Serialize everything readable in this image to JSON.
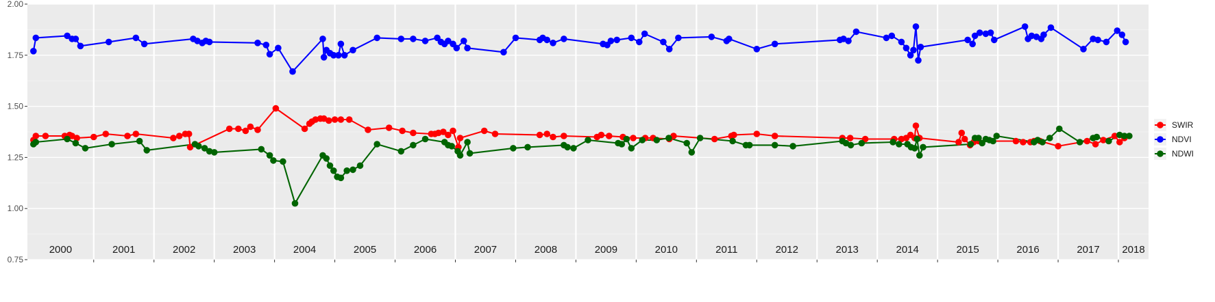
{
  "chart_data": {
    "type": "line",
    "title": "",
    "xlabel": "",
    "ylabel": "",
    "xlim": [
      1999.9,
      2018.5
    ],
    "ylim": [
      0.75,
      2.0
    ],
    "y_ticks": [
      "0.75",
      "1.00",
      "1.25",
      "1.50",
      "1.75",
      "2.00"
    ],
    "y_tick_values": [
      0.75,
      1.0,
      1.25,
      1.5,
      1.75,
      2.0
    ],
    "year_labels": [
      "2000",
      "2001",
      "2002",
      "2003",
      "2004",
      "2005",
      "2006",
      "2007",
      "2008",
      "2009",
      "2010",
      "2011",
      "2012",
      "2013",
      "2014",
      "2015",
      "2016",
      "2017",
      "2018"
    ],
    "year_boundaries": [
      2001,
      2002,
      2003,
      2004,
      2005,
      2006,
      2007,
      2008,
      2009,
      2010,
      2011,
      2012,
      2013,
      2014,
      2015,
      2016,
      2017,
      2018
    ],
    "background": "#ebebeb",
    "grid": true,
    "legend_position": "right",
    "series": [
      {
        "name": "SWIR",
        "color": "#ff0000",
        "points": [
          [
            2000.0,
            1.335
          ],
          [
            2000.04,
            1.355
          ],
          [
            2000.2,
            1.355
          ],
          [
            2000.52,
            1.355
          ],
          [
            2000.6,
            1.36
          ],
          [
            2000.64,
            1.355
          ],
          [
            2000.72,
            1.345
          ],
          [
            2001.0,
            1.35
          ],
          [
            2001.2,
            1.365
          ],
          [
            2001.56,
            1.355
          ],
          [
            2001.7,
            1.365
          ],
          [
            2002.32,
            1.345
          ],
          [
            2002.42,
            1.355
          ],
          [
            2002.52,
            1.365
          ],
          [
            2002.58,
            1.365
          ],
          [
            2002.6,
            1.3
          ],
          [
            2003.25,
            1.39
          ],
          [
            2003.4,
            1.39
          ],
          [
            2003.52,
            1.38
          ],
          [
            2003.6,
            1.4
          ],
          [
            2003.72,
            1.385
          ],
          [
            2004.02,
            1.49
          ],
          [
            2004.5,
            1.39
          ],
          [
            2004.58,
            1.415
          ],
          [
            2004.62,
            1.425
          ],
          [
            2004.68,
            1.435
          ],
          [
            2004.76,
            1.44
          ],
          [
            2004.82,
            1.44
          ],
          [
            2004.9,
            1.43
          ],
          [
            2005.0,
            1.435
          ],
          [
            2005.1,
            1.435
          ],
          [
            2005.24,
            1.435
          ],
          [
            2005.55,
            1.385
          ],
          [
            2005.9,
            1.395
          ],
          [
            2006.12,
            1.38
          ],
          [
            2006.3,
            1.37
          ],
          [
            2006.6,
            1.365
          ],
          [
            2006.66,
            1.365
          ],
          [
            2006.72,
            1.37
          ],
          [
            2006.8,
            1.375
          ],
          [
            2006.88,
            1.36
          ],
          [
            2006.96,
            1.38
          ],
          [
            2007.05,
            1.3
          ],
          [
            2007.08,
            1.345
          ],
          [
            2007.48,
            1.38
          ],
          [
            2007.66,
            1.365
          ],
          [
            2008.4,
            1.36
          ],
          [
            2008.52,
            1.365
          ],
          [
            2008.62,
            1.35
          ],
          [
            2008.8,
            1.355
          ],
          [
            2009.35,
            1.35
          ],
          [
            2009.42,
            1.36
          ],
          [
            2009.55,
            1.355
          ],
          [
            2009.78,
            1.35
          ],
          [
            2009.95,
            1.345
          ],
          [
            2010.15,
            1.345
          ],
          [
            2010.28,
            1.345
          ],
          [
            2010.55,
            1.34
          ],
          [
            2010.62,
            1.355
          ],
          [
            2011.3,
            1.34
          ],
          [
            2011.58,
            1.355
          ],
          [
            2011.62,
            1.36
          ],
          [
            2012.0,
            1.365
          ],
          [
            2012.3,
            1.355
          ],
          [
            2013.42,
            1.345
          ],
          [
            2013.55,
            1.345
          ],
          [
            2013.8,
            1.34
          ],
          [
            2014.28,
            1.34
          ],
          [
            2014.4,
            1.34
          ],
          [
            2014.48,
            1.345
          ],
          [
            2014.55,
            1.36
          ],
          [
            2014.62,
            1.345
          ],
          [
            2014.64,
            1.405
          ],
          [
            2014.7,
            1.345
          ],
          [
            2015.35,
            1.325
          ],
          [
            2015.4,
            1.37
          ],
          [
            2015.45,
            1.34
          ],
          [
            2015.54,
            1.31
          ],
          [
            2015.6,
            1.325
          ],
          [
            2015.68,
            1.33
          ],
          [
            2016.3,
            1.33
          ],
          [
            2016.42,
            1.325
          ],
          [
            2016.54,
            1.325
          ],
          [
            2016.6,
            1.33
          ],
          [
            2016.7,
            1.33
          ],
          [
            2017.0,
            1.305
          ],
          [
            2017.48,
            1.33
          ],
          [
            2017.62,
            1.315
          ],
          [
            2017.75,
            1.335
          ],
          [
            2017.94,
            1.355
          ],
          [
            2018.02,
            1.325
          ],
          [
            2018.1,
            1.345
          ]
        ]
      },
      {
        "name": "NDVI",
        "color": "#0000ff",
        "points": [
          [
            2000.0,
            1.77
          ],
          [
            2000.04,
            1.835
          ],
          [
            2000.56,
            1.845
          ],
          [
            2000.64,
            1.83
          ],
          [
            2000.7,
            1.83
          ],
          [
            2000.78,
            1.795
          ],
          [
            2001.25,
            1.815
          ],
          [
            2001.7,
            1.835
          ],
          [
            2001.84,
            1.805
          ],
          [
            2002.65,
            1.83
          ],
          [
            2002.72,
            1.82
          ],
          [
            2002.8,
            1.81
          ],
          [
            2002.86,
            1.82
          ],
          [
            2002.92,
            1.815
          ],
          [
            2003.72,
            1.81
          ],
          [
            2003.86,
            1.8
          ],
          [
            2003.92,
            1.755
          ],
          [
            2004.06,
            1.785
          ],
          [
            2004.3,
            1.67
          ],
          [
            2004.8,
            1.83
          ],
          [
            2004.82,
            1.74
          ],
          [
            2004.86,
            1.775
          ],
          [
            2004.92,
            1.76
          ],
          [
            2004.98,
            1.75
          ],
          [
            2005.06,
            1.75
          ],
          [
            2005.1,
            1.805
          ],
          [
            2005.16,
            1.75
          ],
          [
            2005.3,
            1.775
          ],
          [
            2005.7,
            1.835
          ],
          [
            2006.1,
            1.83
          ],
          [
            2006.3,
            1.83
          ],
          [
            2006.5,
            1.82
          ],
          [
            2006.7,
            1.835
          ],
          [
            2006.76,
            1.815
          ],
          [
            2006.82,
            1.805
          ],
          [
            2006.88,
            1.82
          ],
          [
            2006.96,
            1.805
          ],
          [
            2007.02,
            1.785
          ],
          [
            2007.14,
            1.82
          ],
          [
            2007.2,
            1.785
          ],
          [
            2007.8,
            1.765
          ],
          [
            2008.0,
            1.835
          ],
          [
            2008.4,
            1.825
          ],
          [
            2008.45,
            1.835
          ],
          [
            2008.52,
            1.825
          ],
          [
            2008.62,
            1.81
          ],
          [
            2008.8,
            1.83
          ],
          [
            2009.45,
            1.805
          ],
          [
            2009.52,
            1.8
          ],
          [
            2009.58,
            1.82
          ],
          [
            2009.68,
            1.825
          ],
          [
            2009.92,
            1.835
          ],
          [
            2010.05,
            1.815
          ],
          [
            2010.14,
            1.855
          ],
          [
            2010.45,
            1.815
          ],
          [
            2010.55,
            1.78
          ],
          [
            2010.7,
            1.835
          ],
          [
            2011.25,
            1.84
          ],
          [
            2011.5,
            1.82
          ],
          [
            2011.54,
            1.83
          ],
          [
            2012.0,
            1.78
          ],
          [
            2012.3,
            1.805
          ],
          [
            2013.38,
            1.825
          ],
          [
            2013.44,
            1.83
          ],
          [
            2013.52,
            1.82
          ],
          [
            2013.65,
            1.865
          ],
          [
            2014.15,
            1.835
          ],
          [
            2014.24,
            1.845
          ],
          [
            2014.4,
            1.815
          ],
          [
            2014.48,
            1.785
          ],
          [
            2014.55,
            1.75
          ],
          [
            2014.6,
            1.775
          ],
          [
            2014.64,
            1.89
          ],
          [
            2014.68,
            1.725
          ],
          [
            2014.72,
            1.79
          ],
          [
            2015.5,
            1.825
          ],
          [
            2015.58,
            1.805
          ],
          [
            2015.62,
            1.845
          ],
          [
            2015.7,
            1.86
          ],
          [
            2015.8,
            1.855
          ],
          [
            2015.88,
            1.86
          ],
          [
            2015.94,
            1.825
          ],
          [
            2016.45,
            1.89
          ],
          [
            2016.5,
            1.83
          ],
          [
            2016.56,
            1.845
          ],
          [
            2016.64,
            1.84
          ],
          [
            2016.72,
            1.83
          ],
          [
            2016.76,
            1.85
          ],
          [
            2016.88,
            1.885
          ],
          [
            2017.42,
            1.78
          ],
          [
            2017.58,
            1.83
          ],
          [
            2017.66,
            1.825
          ],
          [
            2017.8,
            1.815
          ],
          [
            2017.98,
            1.87
          ],
          [
            2018.06,
            1.85
          ],
          [
            2018.12,
            1.815
          ]
        ]
      },
      {
        "name": "NDWI",
        "color": "#006400",
        "points": [
          [
            2000.0,
            1.315
          ],
          [
            2000.04,
            1.325
          ],
          [
            2000.56,
            1.34
          ],
          [
            2000.7,
            1.32
          ],
          [
            2000.86,
            1.295
          ],
          [
            2001.3,
            1.315
          ],
          [
            2001.76,
            1.33
          ],
          [
            2001.88,
            1.285
          ],
          [
            2002.68,
            1.315
          ],
          [
            2002.74,
            1.305
          ],
          [
            2002.84,
            1.295
          ],
          [
            2002.92,
            1.28
          ],
          [
            2003.0,
            1.275
          ],
          [
            2003.78,
            1.29
          ],
          [
            2003.92,
            1.26
          ],
          [
            2003.98,
            1.235
          ],
          [
            2004.14,
            1.23
          ],
          [
            2004.34,
            1.025
          ],
          [
            2004.8,
            1.26
          ],
          [
            2004.86,
            1.245
          ],
          [
            2004.92,
            1.21
          ],
          [
            2004.98,
            1.185
          ],
          [
            2005.04,
            1.155
          ],
          [
            2005.1,
            1.15
          ],
          [
            2005.2,
            1.185
          ],
          [
            2005.3,
            1.19
          ],
          [
            2005.42,
            1.21
          ],
          [
            2005.7,
            1.315
          ],
          [
            2006.1,
            1.28
          ],
          [
            2006.3,
            1.31
          ],
          [
            2006.5,
            1.34
          ],
          [
            2006.82,
            1.325
          ],
          [
            2006.88,
            1.31
          ],
          [
            2006.94,
            1.305
          ],
          [
            2007.04,
            1.28
          ],
          [
            2007.08,
            1.26
          ],
          [
            2007.2,
            1.325
          ],
          [
            2007.24,
            1.27
          ],
          [
            2007.96,
            1.295
          ],
          [
            2008.2,
            1.3
          ],
          [
            2008.8,
            1.31
          ],
          [
            2008.86,
            1.3
          ],
          [
            2008.96,
            1.295
          ],
          [
            2009.2,
            1.335
          ],
          [
            2009.7,
            1.32
          ],
          [
            2009.76,
            1.315
          ],
          [
            2009.84,
            1.34
          ],
          [
            2009.92,
            1.295
          ],
          [
            2010.1,
            1.335
          ],
          [
            2010.34,
            1.335
          ],
          [
            2010.54,
            1.345
          ],
          [
            2010.84,
            1.32
          ],
          [
            2010.92,
            1.275
          ],
          [
            2011.06,
            1.345
          ],
          [
            2011.6,
            1.33
          ],
          [
            2011.82,
            1.31
          ],
          [
            2011.88,
            1.31
          ],
          [
            2012.3,
            1.31
          ],
          [
            2012.6,
            1.305
          ],
          [
            2013.42,
            1.33
          ],
          [
            2013.48,
            1.32
          ],
          [
            2013.56,
            1.31
          ],
          [
            2013.74,
            1.32
          ],
          [
            2014.26,
            1.325
          ],
          [
            2014.36,
            1.315
          ],
          [
            2014.5,
            1.315
          ],
          [
            2014.56,
            1.3
          ],
          [
            2014.62,
            1.295
          ],
          [
            2014.66,
            1.34
          ],
          [
            2014.7,
            1.26
          ],
          [
            2014.76,
            1.3
          ],
          [
            2015.55,
            1.315
          ],
          [
            2015.62,
            1.345
          ],
          [
            2015.68,
            1.345
          ],
          [
            2015.74,
            1.32
          ],
          [
            2015.8,
            1.34
          ],
          [
            2015.86,
            1.335
          ],
          [
            2015.92,
            1.33
          ],
          [
            2015.98,
            1.355
          ],
          [
            2016.6,
            1.325
          ],
          [
            2016.66,
            1.335
          ],
          [
            2016.74,
            1.325
          ],
          [
            2016.86,
            1.345
          ],
          [
            2017.02,
            1.39
          ],
          [
            2017.36,
            1.325
          ],
          [
            2017.58,
            1.345
          ],
          [
            2017.64,
            1.35
          ],
          [
            2017.84,
            1.33
          ],
          [
            2018.02,
            1.36
          ],
          [
            2018.1,
            1.355
          ],
          [
            2018.18,
            1.355
          ]
        ]
      }
    ]
  }
}
